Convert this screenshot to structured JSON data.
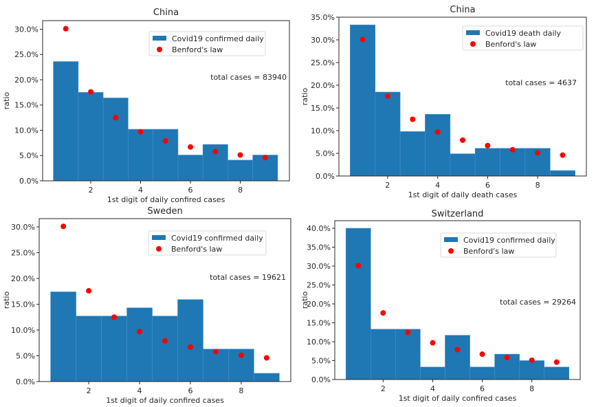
{
  "figure": {
    "bar_color": "#1f77b4",
    "bar_edge_color": "#4a90c8",
    "dot_color": "#ff0000"
  },
  "chart_data": [
    {
      "id": "china-confirmed",
      "type": "bar",
      "title": "China",
      "xlabel": "1st digit of daily confired cases",
      "ylabel": "ratio",
      "x": [
        1,
        2,
        3,
        4,
        5,
        6,
        7,
        8,
        9
      ],
      "xticks": [
        "2",
        "4",
        "6",
        "8"
      ],
      "xtick_values": [
        2,
        4,
        6,
        8
      ],
      "yticks": [
        "0.0%",
        "5.0%",
        "10.0%",
        "15.0%",
        "20.0%",
        "25.0%",
        "30.0%"
      ],
      "ytick_values": [
        0,
        5,
        10,
        15,
        20,
        25,
        30
      ],
      "ylim": [
        0,
        31.7
      ],
      "xlim": [
        0.07,
        9.97
      ],
      "grid": false,
      "legend_position": "upper-right",
      "annotation": "total cases = 83940",
      "series": [
        {
          "name": "Covid19 confirmed daily",
          "kind": "bar",
          "values": [
            23.6,
            17.5,
            16.4,
            10.2,
            10.2,
            5.1,
            7.2,
            4.1,
            5.1
          ]
        },
        {
          "name": "Benford's law",
          "kind": "scatter",
          "values": [
            30.1,
            17.6,
            12.5,
            9.7,
            7.9,
            6.7,
            5.8,
            5.1,
            4.6
          ]
        }
      ]
    },
    {
      "id": "china-death",
      "type": "bar",
      "title": "China",
      "xlabel": "1st digit of daily death cases",
      "ylabel": "ratio",
      "x": [
        1,
        2,
        3,
        4,
        5,
        6,
        7,
        8,
        9
      ],
      "xticks": [
        "2",
        "4",
        "6",
        "8"
      ],
      "xtick_values": [
        2,
        4,
        6,
        8
      ],
      "yticks": [
        "0.0%",
        "5.0%",
        "10.0%",
        "15.0%",
        "20.0%",
        "25.0%",
        "30.0%",
        "35.0%"
      ],
      "ytick_values": [
        0,
        5,
        10,
        15,
        20,
        25,
        30,
        35
      ],
      "ylim": [
        0,
        35
      ],
      "xlim": [
        0.05,
        9.95
      ],
      "grid": false,
      "legend_position": "upper-right",
      "annotation": "total cases = 4637",
      "series": [
        {
          "name": "Covid19 death daily",
          "kind": "bar",
          "values": [
            33.3,
            18.5,
            9.8,
            13.6,
            4.9,
            6.1,
            6.1,
            6.1,
            1.2
          ]
        },
        {
          "name": "Benford's law",
          "kind": "scatter",
          "values": [
            30.1,
            17.6,
            12.5,
            9.7,
            7.9,
            6.7,
            5.8,
            5.1,
            4.6
          ]
        }
      ]
    },
    {
      "id": "sweden-confirmed",
      "type": "bar",
      "title": "Sweden",
      "xlabel": "1st digit of daily confired cases",
      "ylabel": "ratio",
      "x": [
        1,
        2,
        3,
        4,
        5,
        6,
        7,
        8,
        9
      ],
      "xticks": [
        "2",
        "4",
        "6",
        "8"
      ],
      "xtick_values": [
        2,
        4,
        6,
        8
      ],
      "yticks": [
        "0.0%",
        "5.0%",
        "10.0%",
        "15.0%",
        "20.0%",
        "25.0%",
        "30.0%"
      ],
      "ytick_values": [
        0,
        5,
        10,
        15,
        20,
        25,
        30
      ],
      "ylim": [
        0,
        31.6
      ],
      "xlim": [
        0.05,
        9.95
      ],
      "grid": false,
      "legend_position": "upper-right",
      "annotation": "total cases = 19621",
      "series": [
        {
          "name": "Covid19 confirmed daily",
          "kind": "bar",
          "values": [
            17.4,
            12.7,
            12.7,
            14.3,
            12.7,
            15.9,
            6.3,
            6.3,
            1.6
          ]
        },
        {
          "name": "Benford's law",
          "kind": "scatter",
          "values": [
            30.1,
            17.6,
            12.5,
            9.7,
            7.9,
            6.7,
            5.8,
            5.1,
            4.6
          ]
        }
      ]
    },
    {
      "id": "switzerland-confirmed",
      "type": "bar",
      "title": "Switzerland",
      "xlabel": "1st digit of daily confired cases",
      "ylabel": "ratio",
      "x": [
        1,
        2,
        3,
        4,
        5,
        6,
        7,
        8,
        9
      ],
      "xticks": [
        "2",
        "4",
        "6",
        "8"
      ],
      "xtick_values": [
        2,
        4,
        6,
        8
      ],
      "yticks": [
        "0.0%",
        "5.0%",
        "10.0%",
        "15.0%",
        "20.0%",
        "25.0%",
        "30.0%",
        "35.0%",
        "40.0%"
      ],
      "ytick_values": [
        0,
        5,
        10,
        15,
        20,
        25,
        30,
        35,
        40
      ],
      "ylim": [
        0,
        42
      ],
      "xlim": [
        0.05,
        9.95
      ],
      "grid": false,
      "legend_position": "upper-right",
      "annotation": "total cases = 29264",
      "series": [
        {
          "name": "Covid19 confirmed daily",
          "kind": "bar",
          "values": [
            40.0,
            13.3,
            13.3,
            3.3,
            11.7,
            3.3,
            6.7,
            5.0,
            3.3
          ]
        },
        {
          "name": "Benford's law",
          "kind": "scatter",
          "values": [
            30.1,
            17.6,
            12.5,
            9.7,
            7.9,
            6.7,
            5.8,
            5.1,
            4.6
          ]
        }
      ]
    }
  ]
}
